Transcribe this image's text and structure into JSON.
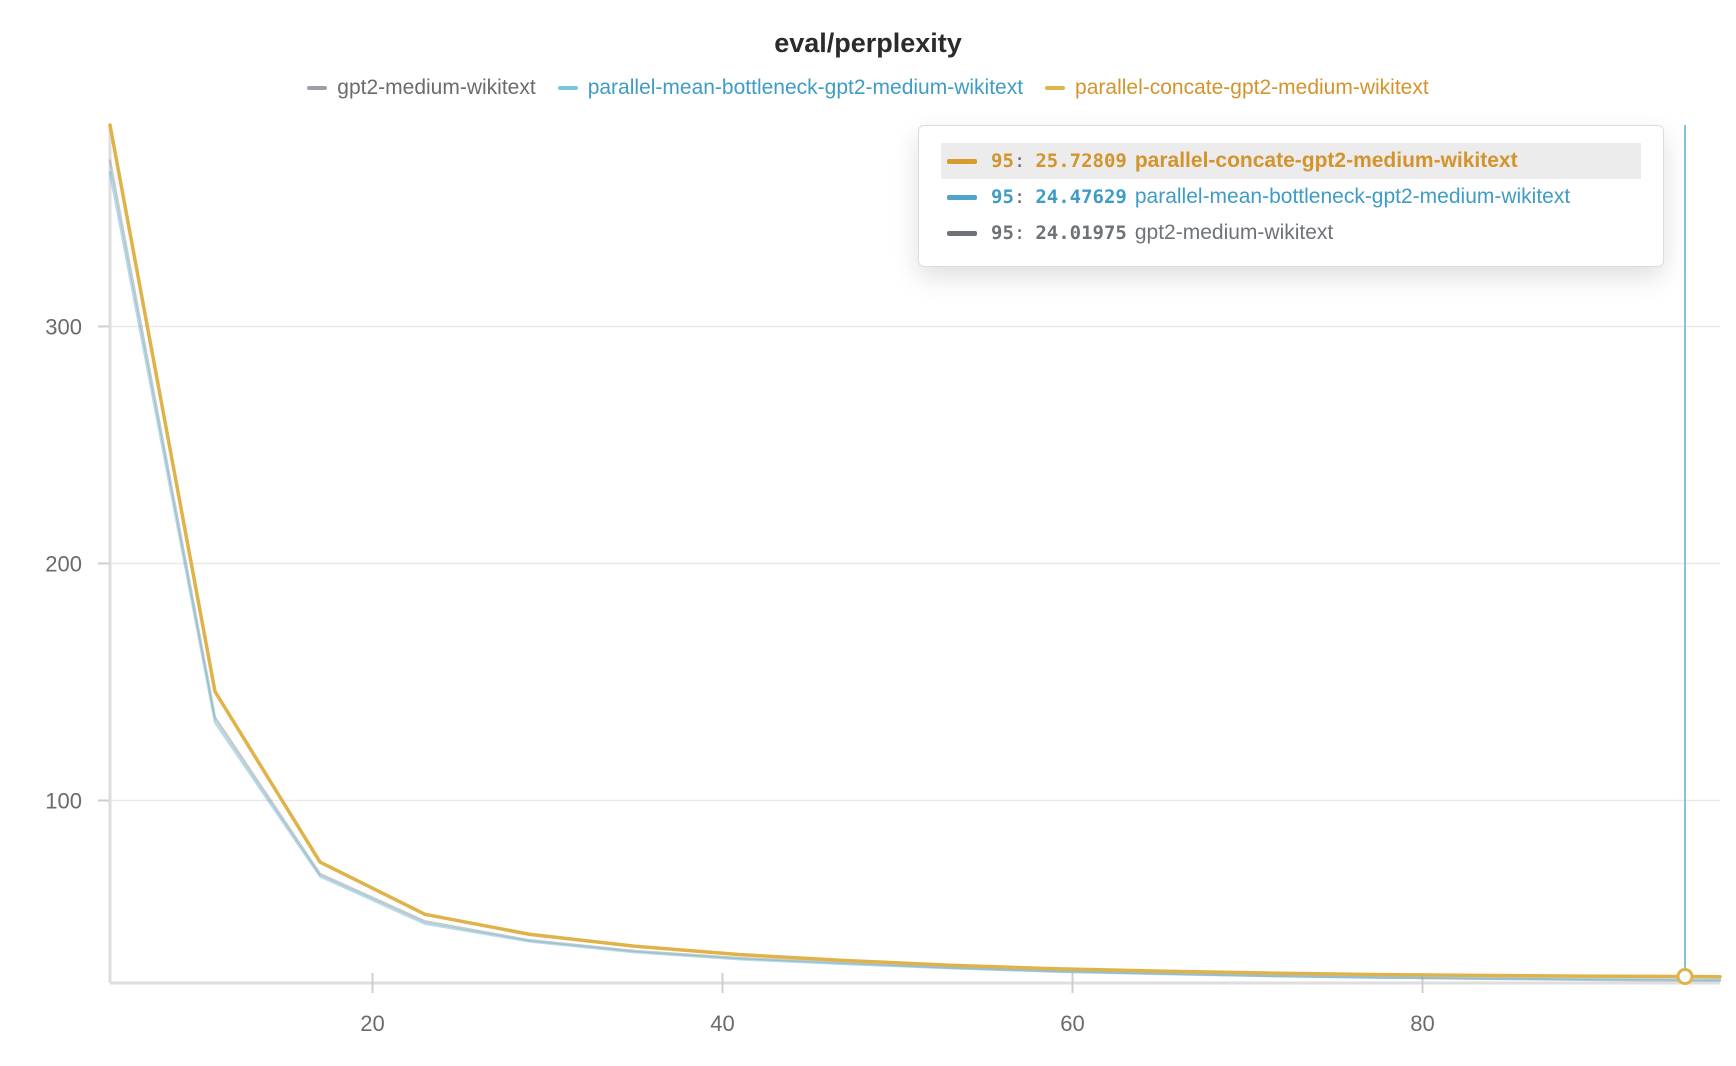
{
  "colors": {
    "gpt2": "#9aa0a6",
    "mean": "#5ab0d0",
    "concate": "#e0b24a",
    "cursor": "#5ab0d0"
  },
  "chart_data": {
    "type": "line",
    "title": "eval/perplexity",
    "xlabel": "",
    "ylabel": "",
    "xlim": [
      5,
      97
    ],
    "ylim": [
      23,
      385
    ],
    "x_ticks": [
      20,
      40,
      60,
      80
    ],
    "y_ticks": [
      100,
      200,
      300
    ],
    "grid": true,
    "legend_position": "top",
    "series": [
      {
        "name": "gpt2-medium-wikitext",
        "color": "#9aa0a6",
        "x": [
          5,
          11,
          17,
          23,
          29,
          35,
          41,
          47,
          53,
          59,
          65,
          71,
          77,
          83,
          89,
          95
        ],
        "y": [
          370,
          135,
          69,
          49,
          41,
          36.5,
          33.5,
          31.5,
          29.5,
          28,
          27,
          26,
          25.3,
          24.8,
          24.4,
          24.01975
        ]
      },
      {
        "name": "parallel-mean-bottleneck-gpt2-medium-wikitext",
        "color": "#5ab0d0",
        "x": [
          5,
          11,
          17,
          23,
          29,
          35,
          41,
          47,
          53,
          59,
          65,
          71,
          77,
          83,
          89,
          95
        ],
        "y": [
          365,
          133,
          68,
          48,
          40.5,
          36,
          33,
          31,
          29.3,
          27.8,
          26.8,
          26,
          25.4,
          25,
          24.7,
          24.47629
        ]
      },
      {
        "name": "parallel-concate-gpt2-medium-wikitext",
        "color": "#e0b24a",
        "x": [
          5,
          11,
          17,
          23,
          29,
          35,
          41,
          47,
          53,
          59,
          65,
          71,
          77,
          83,
          89,
          95
        ],
        "y": [
          385,
          146,
          74,
          52,
          43.5,
          38.5,
          35,
          32.5,
          30.5,
          29,
          28,
          27.2,
          26.6,
          26.2,
          25.9,
          25.72809
        ]
      }
    ],
    "hover": {
      "x": 95,
      "rows": [
        {
          "step": "95",
          "value": "25.72809",
          "name": "parallel-concate-gpt2-medium-wikitext",
          "color": "#d99a2e",
          "text_color": "#d4932c",
          "highlight": true
        },
        {
          "step": "95",
          "value": "24.47629",
          "name": "parallel-mean-bottleneck-gpt2-medium-wikitext",
          "color": "#4fa3cf",
          "text_color": "#3f9cc6",
          "highlight": false
        },
        {
          "step": "95",
          "value": "24.01975",
          "name": "gpt2-medium-wikitext",
          "color": "#6f7378",
          "text_color": "#6f7378",
          "highlight": false
        }
      ]
    }
  },
  "legend": [
    {
      "label": "gpt2-medium-wikitext",
      "color": "#9aa0a6",
      "text_color": "#6b6b6b"
    },
    {
      "label": "parallel-mean-bottleneck-gpt2-medium-wikitext",
      "color": "#7cc6db",
      "text_color": "#3f9cc6"
    },
    {
      "label": "parallel-concate-gpt2-medium-wikitext",
      "color": "#e0b24a",
      "text_color": "#d4932c"
    }
  ]
}
